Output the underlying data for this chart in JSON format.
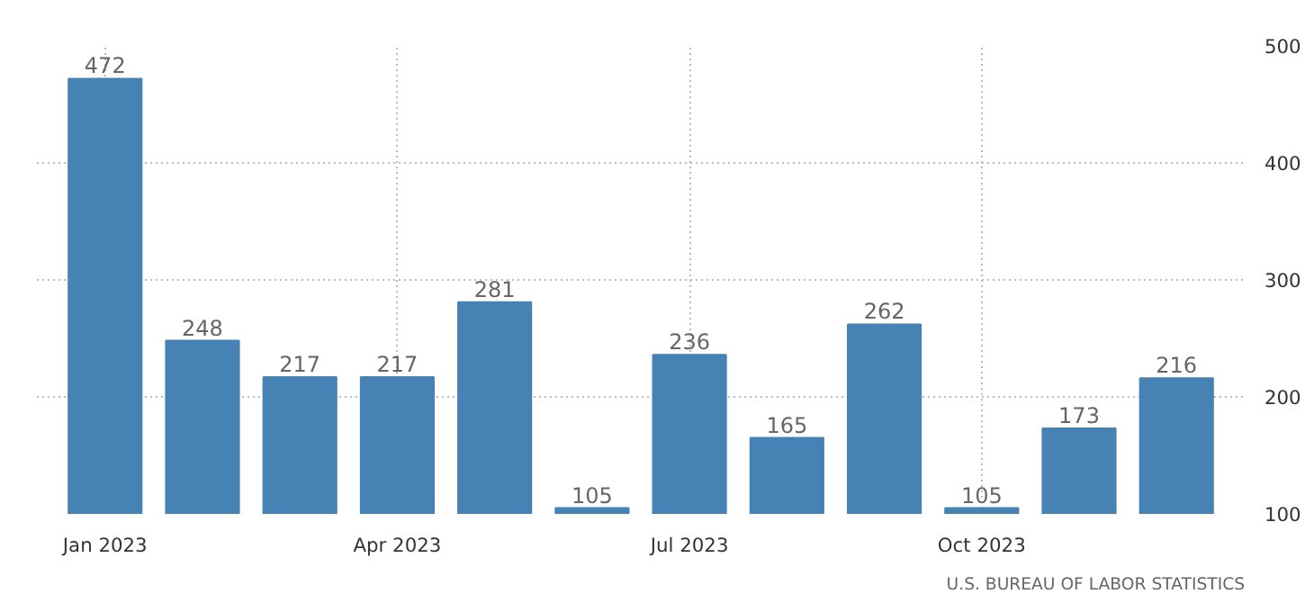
{
  "chart_data": {
    "type": "bar",
    "categories": [
      "Jan 2023",
      null,
      null,
      "Apr 2023",
      null,
      null,
      "Jul 2023",
      null,
      null,
      "Oct 2023",
      null,
      null
    ],
    "values": [
      472,
      248,
      217,
      217,
      281,
      105,
      236,
      165,
      262,
      105,
      173,
      216
    ],
    "color": "#4682b4",
    "ylim": [
      100,
      500
    ],
    "yticks": [
      100,
      200,
      300,
      400,
      500
    ],
    "grid": true,
    "data_labels": true,
    "annotations": [
      "U.S. BUREAU OF LABOR STATISTICS"
    ]
  }
}
